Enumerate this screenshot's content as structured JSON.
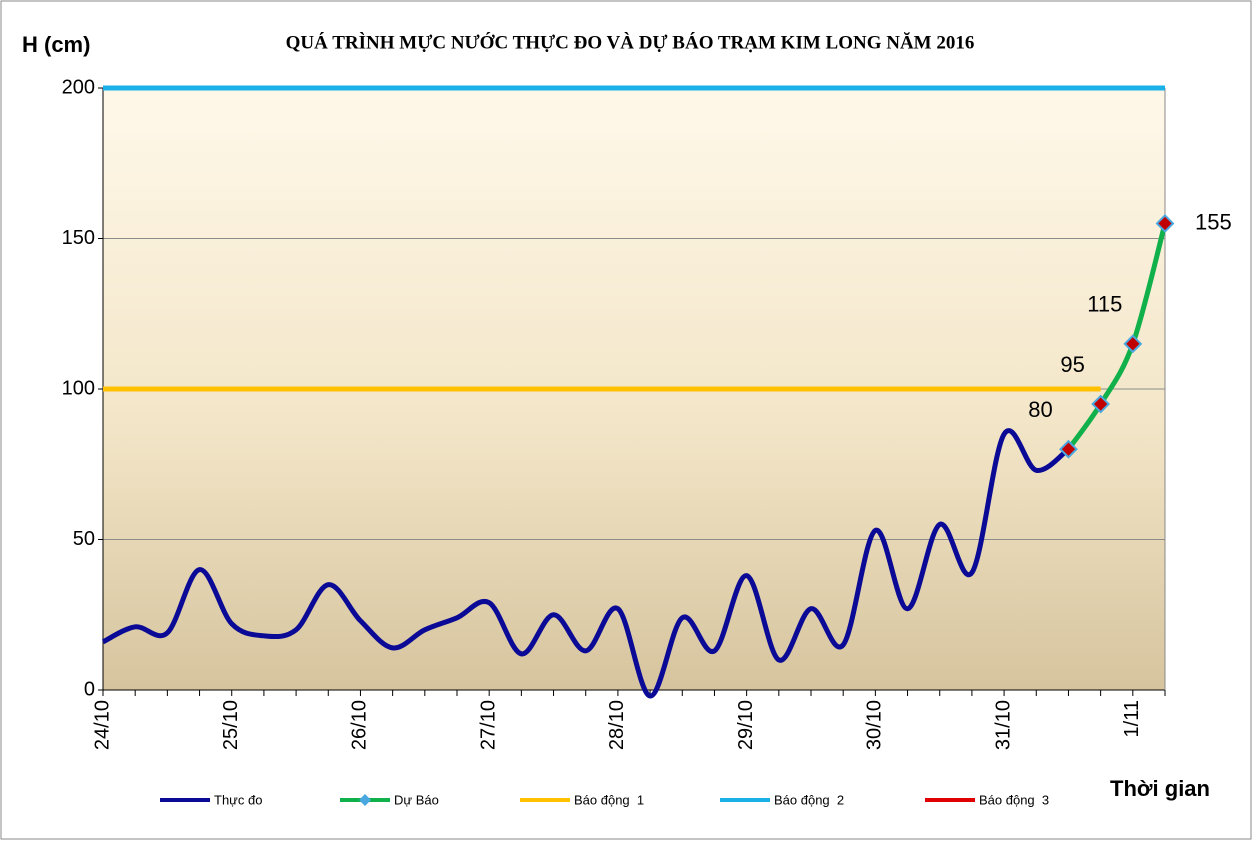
{
  "chart_data": {
    "type": "line",
    "title": "QUÁ TRÌNH MỰC NƯỚC THỰC ĐO VÀ DỰ BÁO TRẠM KIM LONG NĂM 2016",
    "y_label": "H (cm)",
    "x_label": "Thời gian",
    "categories": [
      "24/10",
      null,
      null,
      null,
      "25/10",
      null,
      null,
      null,
      "26/10",
      null,
      null,
      null,
      "27/10",
      null,
      null,
      null,
      "28/10",
      null,
      null,
      null,
      "29/10",
      null,
      null,
      null,
      "30/10",
      null,
      null,
      null,
      "31/10",
      null,
      null,
      null,
      "1/11",
      null
    ],
    "series": [
      {
        "name": "Thực đo",
        "color": "#0a0a96",
        "values": [
          16,
          21,
          19,
          40,
          22,
          18,
          20,
          35,
          23,
          14,
          20,
          24,
          29,
          12,
          25,
          13,
          27,
          -2,
          24,
          13,
          38,
          10,
          27,
          15,
          53,
          27,
          55,
          39,
          85,
          73,
          80,
          null,
          null,
          null
        ]
      },
      {
        "name": "Dự Báo",
        "color": "#10b04a",
        "markers": true,
        "values": [
          null,
          null,
          null,
          null,
          null,
          null,
          null,
          null,
          null,
          null,
          null,
          null,
          null,
          null,
          null,
          null,
          null,
          null,
          null,
          null,
          null,
          null,
          null,
          null,
          null,
          null,
          null,
          null,
          null,
          null,
          80,
          95,
          115,
          155
        ]
      },
      {
        "name": "Báo động  1",
        "color": "#ffc000",
        "values": [
          100,
          100,
          100,
          100,
          100,
          100,
          100,
          100,
          100,
          100,
          100,
          100,
          100,
          100,
          100,
          100,
          100,
          100,
          100,
          100,
          100,
          100,
          100,
          100,
          100,
          100,
          100,
          100,
          100,
          100,
          100,
          100,
          null,
          null
        ]
      },
      {
        "name": "Báo động  2",
        "color": "#1ab0e8",
        "values": [
          200,
          200,
          200,
          200,
          200,
          200,
          200,
          200,
          200,
          200,
          200,
          200,
          200,
          200,
          200,
          200,
          200,
          200,
          200,
          200,
          200,
          200,
          200,
          200,
          200,
          200,
          200,
          200,
          200,
          200,
          200,
          200,
          200,
          200
        ]
      },
      {
        "name": "Báo động  3",
        "color": "#e00000",
        "values": [
          null,
          null,
          null,
          null,
          null,
          null,
          null,
          null,
          null,
          null,
          null,
          null,
          null,
          null,
          null,
          null,
          null,
          null,
          null,
          null,
          null,
          null,
          null,
          null,
          null,
          null,
          null,
          null,
          null,
          null,
          null,
          null,
          null,
          null
        ]
      }
    ],
    "ylim": [
      0,
      200
    ],
    "yticks": [
      0,
      50,
      100,
      150,
      200
    ],
    "grid": true
  }
}
